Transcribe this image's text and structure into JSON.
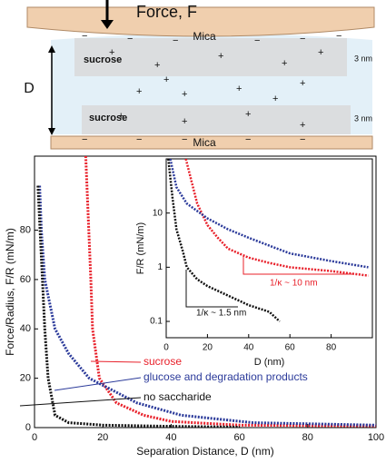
{
  "diagram": {
    "force_label": "Force, F",
    "mica_top": "Mica",
    "mica_bottom": "Mica",
    "gap_label": "D",
    "layer_top": "sucrose",
    "layer_bottom": "sucrose",
    "thickness_top": "3 nm",
    "thickness_bottom": "3 nm"
  },
  "chart_data": [
    {
      "type": "line",
      "xlabel": "Separation Distance, D (nm)",
      "ylabel": "Force/Radius, F/R (mN/m)",
      "xlim": [
        0,
        100
      ],
      "ylim": [
        0,
        110
      ],
      "xticks": [
        0,
        20,
        40,
        60,
        80,
        100
      ],
      "yticks": [
        0,
        20,
        40,
        60,
        80
      ],
      "series": [
        {
          "name": "sucrose",
          "color": "#e8202a",
          "x": [
            15,
            16.5,
            17,
            19,
            24,
            32,
            40,
            60,
            80,
            100
          ],
          "values": [
            110,
            60,
            40,
            20,
            10,
            5,
            2.5,
            1,
            0.8,
            0.7
          ]
        },
        {
          "name": "glucose and degradation products",
          "color": "#2b3a9a",
          "x": [
            1.5,
            2,
            3,
            6,
            10,
            16,
            30,
            43,
            64,
            100
          ],
          "values": [
            98,
            80,
            60,
            40,
            30,
            20,
            10,
            5,
            2,
            1
          ]
        },
        {
          "name": "no saccharide",
          "color": "#111111",
          "x": [
            1,
            3,
            4,
            6,
            10,
            20,
            40,
            60
          ],
          "values": [
            98,
            40,
            20,
            5,
            2,
            1,
            0.5,
            0.2
          ]
        }
      ]
    },
    {
      "type": "line",
      "xlabel": "D (nm)",
      "ylabel": "F/R (mN/m)",
      "log_y": true,
      "xlim": [
        0,
        100
      ],
      "ylim": [
        0.05,
        100
      ],
      "xticks": [
        0,
        20,
        40,
        60,
        80
      ],
      "yticks": [
        0.1,
        1,
        10
      ],
      "annotations": [
        "1/κ ~ 10 nm",
        "1/κ ~ 1.5 nm"
      ],
      "series": [
        {
          "color": "#e8202a",
          "x": [
            9.5,
            15,
            20,
            25,
            30,
            40,
            50,
            60,
            80,
            98
          ],
          "values": [
            100,
            15,
            6,
            3.5,
            2.2,
            1.5,
            1.2,
            1.0,
            0.85,
            0.7
          ]
        },
        {
          "color": "#2b3a9a",
          "x": [
            2,
            5,
            10,
            20,
            30,
            40,
            50,
            60,
            80,
            98
          ],
          "values": [
            100,
            30,
            15,
            8,
            5,
            3.5,
            2.5,
            1.8,
            1.3,
            1.0
          ]
        },
        {
          "color": "#111111",
          "x": [
            1,
            3,
            5,
            8,
            10,
            15,
            20,
            30,
            40,
            50,
            55
          ],
          "values": [
            100,
            20,
            5,
            2,
            1,
            0.6,
            0.45,
            0.3,
            0.2,
            0.15,
            0.1
          ]
        }
      ]
    }
  ]
}
